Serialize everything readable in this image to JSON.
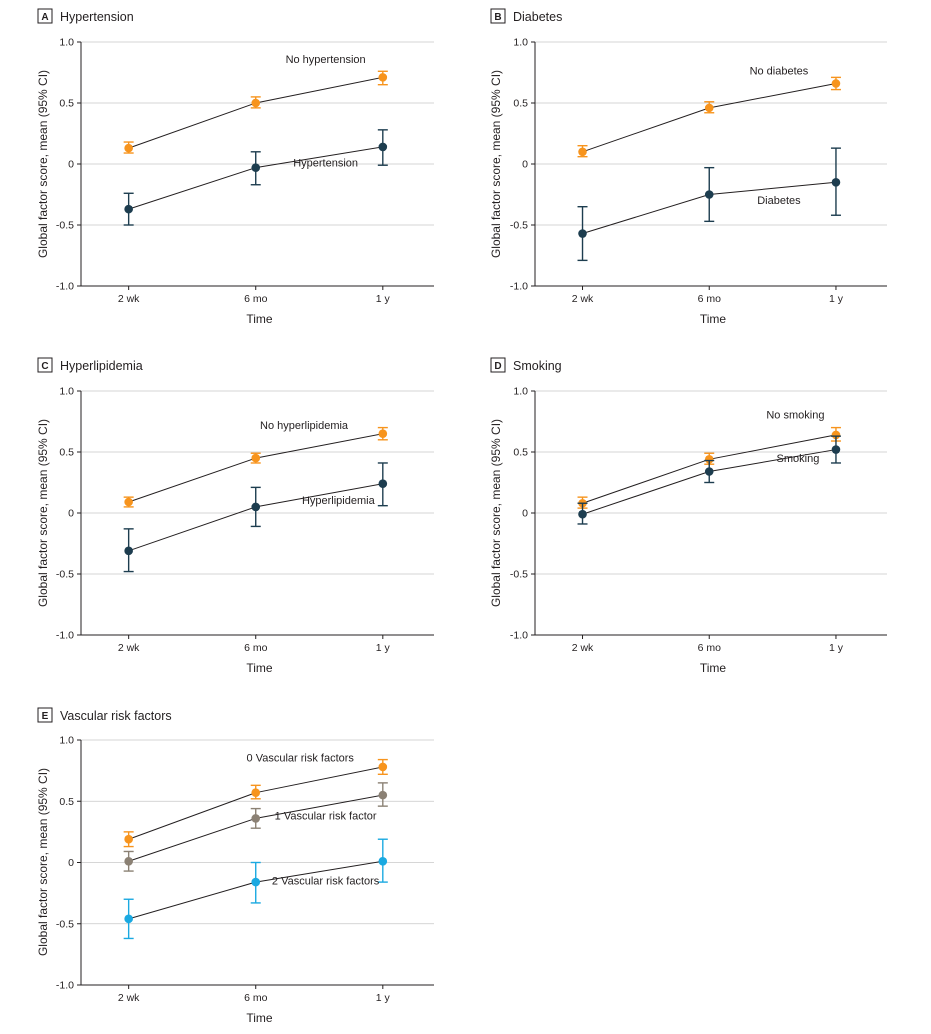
{
  "chart_data": [
    {
      "type": "line",
      "panel": "A",
      "title": "Hypertension",
      "xlabel": "Time",
      "ylabel": "Global factor score, mean (95% CI)",
      "categories": [
        "2 wk",
        "6 mo",
        "1 y"
      ],
      "ylim": [
        -1.0,
        1.0
      ],
      "yticks": [
        1.0,
        0.5,
        0,
        -0.5,
        -1.0
      ],
      "ytick_labels": [
        "1.0",
        "0.5",
        "0",
        "-0.5",
        "-1.0"
      ],
      "grid": true,
      "series": [
        {
          "name": "No hypertension",
          "color": "#f7941d",
          "values": [
            0.13,
            0.5,
            0.71
          ],
          "lower": [
            0.09,
            0.46,
            0.65
          ],
          "upper": [
            0.18,
            0.55,
            0.76
          ]
        },
        {
          "name": "Hypertension",
          "color": "#1d3d4f",
          "values": [
            -0.37,
            -0.03,
            0.14
          ],
          "lower": [
            -0.5,
            -0.17,
            -0.01
          ],
          "upper": [
            -0.24,
            0.1,
            0.28
          ]
        }
      ]
    },
    {
      "type": "line",
      "panel": "B",
      "title": "Diabetes",
      "xlabel": "Time",
      "ylabel": "Global factor score, mean (95% CI)",
      "categories": [
        "2 wk",
        "6 mo",
        "1 y"
      ],
      "ylim": [
        -1.0,
        1.0
      ],
      "yticks": [
        1.0,
        0.5,
        0,
        -0.5,
        -1.0
      ],
      "ytick_labels": [
        "1.0",
        "0.5",
        "0",
        "-0.5",
        "-1.0"
      ],
      "grid": true,
      "series": [
        {
          "name": "No diabetes",
          "color": "#f7941d",
          "values": [
            0.1,
            0.46,
            0.66
          ],
          "lower": [
            0.06,
            0.42,
            0.61
          ],
          "upper": [
            0.15,
            0.51,
            0.71
          ]
        },
        {
          "name": "Diabetes",
          "color": "#1d3d4f",
          "values": [
            -0.57,
            -0.25,
            -0.15
          ],
          "lower": [
            -0.79,
            -0.47,
            -0.42
          ],
          "upper": [
            -0.35,
            -0.03,
            0.13
          ]
        }
      ]
    },
    {
      "type": "line",
      "panel": "C",
      "title": "Hyperlipidemia",
      "xlabel": "Time",
      "ylabel": "Global factor score, mean (95% CI)",
      "categories": [
        "2 wk",
        "6 mo",
        "1 y"
      ],
      "ylim": [
        -1.0,
        1.0
      ],
      "yticks": [
        1.0,
        0.5,
        0,
        -0.5,
        -1.0
      ],
      "ytick_labels": [
        "1.0",
        "0.5",
        "0",
        "-0.5",
        "-1.0"
      ],
      "grid": true,
      "series": [
        {
          "name": "No hyperlipidemia",
          "color": "#f7941d",
          "values": [
            0.09,
            0.45,
            0.65
          ],
          "lower": [
            0.05,
            0.41,
            0.6
          ],
          "upper": [
            0.13,
            0.49,
            0.7
          ]
        },
        {
          "name": "Hyperlipidemia",
          "color": "#1d3d4f",
          "values": [
            -0.31,
            0.05,
            0.24
          ],
          "lower": [
            -0.48,
            -0.11,
            0.06
          ],
          "upper": [
            -0.13,
            0.21,
            0.41
          ]
        }
      ]
    },
    {
      "type": "line",
      "panel": "D",
      "title": "Smoking",
      "xlabel": "Time",
      "ylabel": "Global factor score, mean (95% CI)",
      "categories": [
        "2 wk",
        "6 mo",
        "1 y"
      ],
      "ylim": [
        -1.0,
        1.0
      ],
      "yticks": [
        1.0,
        0.5,
        0,
        -0.5,
        -1.0
      ],
      "ytick_labels": [
        "1.0",
        "0.5",
        "0",
        "-0.5",
        "-1.0"
      ],
      "grid": true,
      "series": [
        {
          "name": "No smoking",
          "color": "#f7941d",
          "values": [
            0.08,
            0.44,
            0.64
          ],
          "lower": [
            0.04,
            0.4,
            0.59
          ],
          "upper": [
            0.13,
            0.49,
            0.7
          ]
        },
        {
          "name": "Smoking",
          "color": "#1d3d4f",
          "values": [
            -0.01,
            0.34,
            0.52
          ],
          "lower": [
            -0.09,
            0.25,
            0.41
          ],
          "upper": [
            0.08,
            0.43,
            0.63
          ]
        }
      ]
    },
    {
      "type": "line",
      "panel": "E",
      "title": "Vascular risk factors",
      "xlabel": "Time",
      "ylabel": "Global factor score, mean (95% CI)",
      "categories": [
        "2 wk",
        "6 mo",
        "1 y"
      ],
      "ylim": [
        -1.0,
        1.0
      ],
      "yticks": [
        1.0,
        0.5,
        0,
        -0.5,
        -1.0
      ],
      "ytick_labels": [
        "1.0",
        "0.5",
        "0",
        "-0.5",
        "-1.0"
      ],
      "grid": true,
      "series": [
        {
          "name": "0 Vascular risk factors",
          "color": "#f7941d",
          "values": [
            0.19,
            0.57,
            0.78
          ],
          "lower": [
            0.13,
            0.52,
            0.72
          ],
          "upper": [
            0.25,
            0.63,
            0.84
          ]
        },
        {
          "name": "1 Vascular risk factor",
          "color": "#8b8174",
          "values": [
            0.01,
            0.36,
            0.55
          ],
          "lower": [
            -0.07,
            0.28,
            0.46
          ],
          "upper": [
            0.09,
            0.44,
            0.65
          ]
        },
        {
          "name": "2 Vascular risk factors",
          "color": "#1aa9e1",
          "values": [
            -0.46,
            -0.16,
            0.01
          ],
          "lower": [
            -0.62,
            -0.33,
            -0.16
          ],
          "upper": [
            -0.3,
            0.0,
            0.19
          ]
        }
      ]
    }
  ]
}
